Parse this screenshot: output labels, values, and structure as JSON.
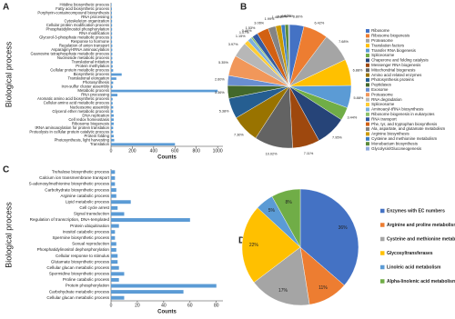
{
  "chart_data": [
    {
      "type": "bar",
      "label": "A",
      "horizontal": true,
      "color": "#5b9bd5",
      "categories": [
        "Hitidine biosynthetic process",
        "Fatty acid biosynthetic process",
        "Porphyrin-containcompound biosynthesis",
        "RNA processing",
        "Cytoskeleton organization",
        "Cellular protein modification process",
        "Phosphatidylinositol phosphorylation",
        "RNA modification",
        "Glycerol-3-phosphate metabolic process",
        "Response to hormone",
        "Regulation of anion transport",
        "Asparaginyl-tRNA aminoacylation",
        "Guanosine tetraphosphate metabolic process",
        "Nucleoside metabolic process",
        "Translational initiation",
        "Protein methylation",
        "Cellular protein metabolic process",
        "Biosynthetic process",
        "Translational elongation",
        "Photosynthesis",
        "Iron-sulfur cluster assembly",
        "Metabolic process",
        "RNA processing",
        "Aromatic amino acid biosynthetic process",
        "Cellular amino acid metabolic process",
        "Nucleosome assembly",
        "Glycerol ether metabolic process",
        "DNA replication",
        "Cell redox homeostasis",
        "Ribosome biogenesis",
        "tRNA aminoacylation for protein translation",
        "Proteolysis in cellular protein catalytic process",
        "Protein folding",
        "Photosynthesis, light harvesting",
        "Translation"
      ],
      "values": [
        5,
        8,
        8,
        10,
        10,
        10,
        10,
        10,
        10,
        10,
        12,
        12,
        12,
        12,
        15,
        15,
        20,
        100,
        50,
        20,
        15,
        1000,
        60,
        15,
        15,
        20,
        20,
        25,
        25,
        25,
        20,
        20,
        25,
        30,
        600
      ],
      "xlim": [
        0,
        1050
      ],
      "xticks": [
        0,
        200,
        400,
        600,
        800,
        1000
      ],
      "xlabel": "Counts",
      "ylabel": "Biological process"
    },
    {
      "type": "pie",
      "label": "B",
      "categories": [
        "Ribosome",
        "Ribosome biogenesis",
        "Proteasome",
        "Translation factors",
        "Transfer RNA biogenesis",
        "Spliceosome",
        "Chaperone and folding catalysis",
        "Messenger RNA biogenesis",
        "Mitochondrial biogenesis",
        "Amino acid related enzymes",
        "Photosynthesis proteins",
        "Peptidases",
        "Exosome",
        "Proteasome",
        "RNA degradation",
        "Spliceosome",
        "Aminoacyl-tRNA biosynthesis",
        "Ribosome biogenesis in eukaryotes",
        "RNA transport",
        "Phe, tyr, and tryptophan biosynthesis",
        "Ala, aspartate, and glutamate metabolism",
        "Arginine biosynthesis",
        "Cysteine and methionine metabolism",
        "Monobactam biosynthesis",
        "Glycolysis/Gluconeogenesis"
      ],
      "values": [
        3.8,
        6.42,
        7.68,
        6.88,
        5.88,
        3.44,
        7.95,
        7.11,
        10.02,
        7.3,
        5.38,
        3.36,
        2.6,
        5.35,
        3.97,
        1.15,
        1.07,
        0.46,
        1.53,
        3.06,
        1.99,
        1.46,
        0.99,
        0.92,
        0.23
      ],
      "value_labels": [
        "3.80%",
        "6.42%",
        "7.68%",
        "6.88%",
        "5.88%",
        "3.44%",
        "7.95%",
        "7.11%",
        "10.02%",
        "7.30%",
        "5.38%",
        "3.36%",
        "2.60%",
        "5.35%",
        "3.97%",
        "1.15%",
        "1.07%",
        "0.46%",
        "1.53%",
        "3.06%",
        "1.99%",
        "1.46%",
        "0.99%",
        "0.92%",
        "0.23%"
      ],
      "colors": [
        "#4472c4",
        "#ed7d31",
        "#a5a5a5",
        "#ffc000",
        "#5b9bd5",
        "#70ad47",
        "#264478",
        "#9e480e",
        "#636363",
        "#997300",
        "#255e91",
        "#43682b",
        "#698ed0",
        "#f1975a",
        "#b7b7b7",
        "#ffcd33",
        "#7cafdd",
        "#8cc168",
        "#335aa1",
        "#d26012",
        "#848484",
        "#cc9a00",
        "#3c7dc4",
        "#5a8a39",
        "#8faadc"
      ]
    },
    {
      "type": "bar",
      "label": "C",
      "horizontal": true,
      "color": "#5b9bd5",
      "categories": [
        "Trehalose biosynthetic process",
        "Calcium ion transmembrane transport",
        "S-adenosylmethionine biosynthetic process",
        "Carbohydrate biosynthetic process",
        "Arginine catabolic process",
        "Lipid metabolic process",
        "Cell cycle arrest",
        "Signal transduction",
        "Regulation of transcription, DNA-templated",
        "Protein ubiquitination",
        "Inositol catabolic process",
        "Spermine biosynthetic process",
        "Sexual reproduction",
        "Phosphatidylinositol dephosphorylation",
        "Cellular response to stimulus",
        "Glutamate biosynthetic process",
        "Cellular glucan metabolic process",
        "Spermidine biosynthetic process",
        "Proline catabolic process",
        "Protein phosphorylation",
        "Carbohydrate metabolic process",
        "Cellular glucan metabolic process"
      ],
      "values": [
        3,
        3,
        3,
        4,
        4,
        15,
        5,
        10,
        60,
        6,
        3,
        3,
        4,
        4,
        5,
        5,
        6,
        10,
        6,
        80,
        55,
        10
      ],
      "xlim": [
        0,
        85
      ],
      "xticks": [
        0,
        20,
        40,
        60,
        80
      ],
      "xlabel": "Counts",
      "ylabel": "Biological process"
    },
    {
      "type": "pie",
      "label": "D",
      "categories": [
        "Enzymes with EC numbers",
        "Arginine and proline metabolism",
        "Cysteine and methionine metabolism",
        "Glycosyltransferases",
        "Linoleic acid metabolism",
        "Alpha-linolenic acid metabolism"
      ],
      "values": [
        36,
        11,
        17,
        22,
        5,
        8
      ],
      "value_labels": [
        "36%",
        "11%",
        "17%",
        "22%",
        "5%",
        "8%"
      ],
      "colors": [
        "#4472c4",
        "#ed7d31",
        "#a5a5a5",
        "#ffc000",
        "#5b9bd5",
        "#70ad47"
      ]
    }
  ]
}
